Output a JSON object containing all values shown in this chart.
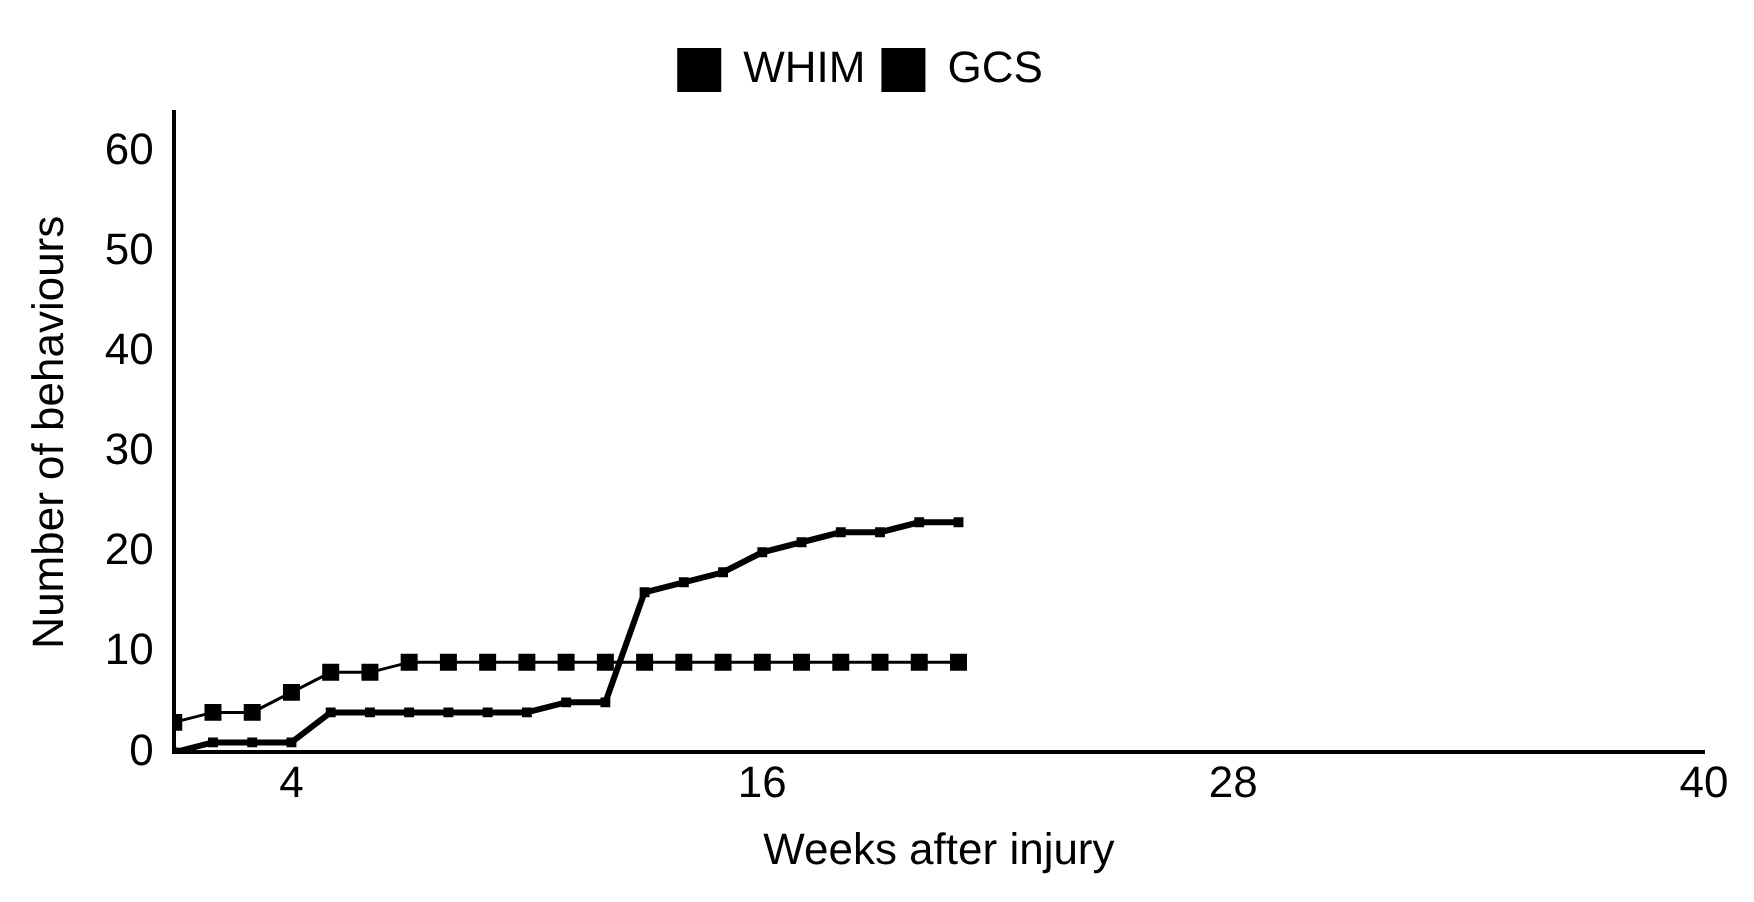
{
  "chart_data": {
    "type": "line",
    "xlabel": "Weeks after injury",
    "ylabel": "Number of behaviours",
    "x": [
      1,
      2,
      3,
      4,
      5,
      6,
      7,
      8,
      9,
      10,
      11,
      12,
      13,
      14,
      15,
      16,
      17,
      18,
      19,
      20,
      21
    ],
    "series": [
      {
        "name": "WHIM",
        "color": "#000000",
        "values": [
          0,
          1,
          1,
          1,
          4,
          4,
          4,
          4,
          4,
          4,
          5,
          5,
          16,
          17,
          18,
          20,
          21,
          22,
          22,
          23,
          23
        ]
      },
      {
        "name": "GCS",
        "color": "#000000",
        "values": [
          3,
          4,
          4,
          6,
          8,
          8,
          9,
          9,
          9,
          9,
          9,
          9,
          9,
          9,
          9,
          9,
          9,
          9,
          9,
          9,
          9
        ]
      }
    ],
    "xlim": [
      1,
      40
    ],
    "xticks": [
      4,
      16,
      28,
      40
    ],
    "ylim": [
      0,
      64
    ],
    "yticks": [
      0,
      10,
      20,
      30,
      40,
      50,
      60
    ],
    "grid": false,
    "legend": "top",
    "marker": "square",
    "line_style": "solid"
  }
}
